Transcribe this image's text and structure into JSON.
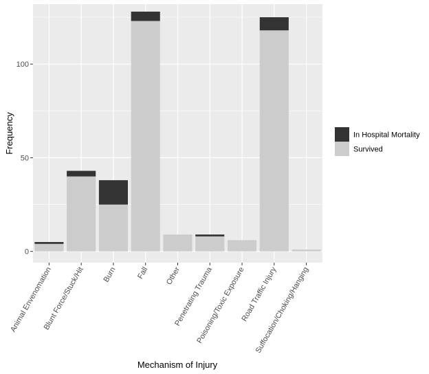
{
  "chart_data": {
    "type": "bar",
    "stacked": true,
    "title": "",
    "xlabel": "Mechanism of Injury",
    "ylabel": "Frequency",
    "ylim": [
      -6,
      132
    ],
    "yticks": [
      0,
      50,
      100
    ],
    "categories": [
      "Animal Envenomation",
      "Blunt Force/Stuck/Hit",
      "Burn",
      "Fall",
      "Other",
      "Penetrating Trauma",
      "Poisoning/Toxic Exposure",
      "Road Traffic Injury",
      "Suffocation/Choking/Hanging"
    ],
    "series": [
      {
        "name": "Survived",
        "color": "#cccccc",
        "values": [
          4,
          40,
          25,
          123,
          9,
          8,
          6,
          118,
          1
        ]
      },
      {
        "name": "In Hospital Mortality",
        "color": "#333333",
        "values": [
          1,
          3,
          13,
          5,
          0,
          1,
          0,
          7,
          0
        ]
      }
    ],
    "legend": {
      "position": "right",
      "entries": [
        "In Hospital Mortality",
        "Survived"
      ]
    },
    "grid": true,
    "panel_background": "#ebebeb",
    "gridline_color": "#ffffff"
  }
}
